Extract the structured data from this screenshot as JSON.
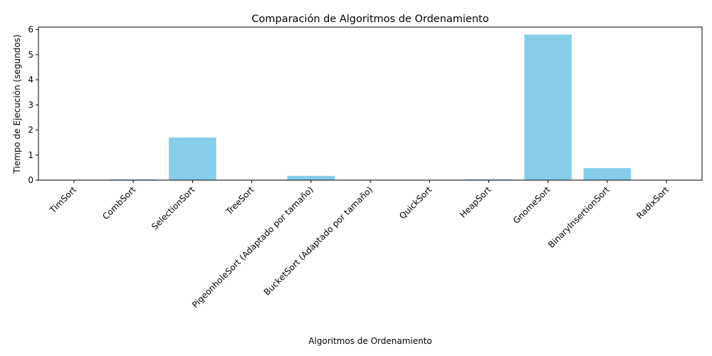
{
  "chart_data": {
    "type": "bar",
    "title": "Comparación de Algoritmos de Ordenamiento",
    "xlabel": "Algoritmos de Ordenamiento",
    "ylabel": "Tiempo de Ejecución (segundos)",
    "categories": [
      "TimSort",
      "CombSort",
      "SelectionSort",
      "TreeSort",
      "PigeonholeSort (Adaptado por tamaño)",
      "BucketSort (Adaptado por tamaño)",
      "QuickSort",
      "HeapSort",
      "GnomeSort",
      "BinaryInsertionSort",
      "RadixSort"
    ],
    "values": [
      0.002,
      0.03,
      1.7,
      0.008,
      0.17,
      0.005,
      0.004,
      0.03,
      5.8,
      0.48,
      0.005
    ],
    "ylim": [
      0,
      6.1
    ],
    "yticks": [
      0,
      1,
      2,
      3,
      4,
      5,
      6
    ],
    "bar_color": "#87CEEB",
    "grid": false,
    "legend": "none"
  }
}
